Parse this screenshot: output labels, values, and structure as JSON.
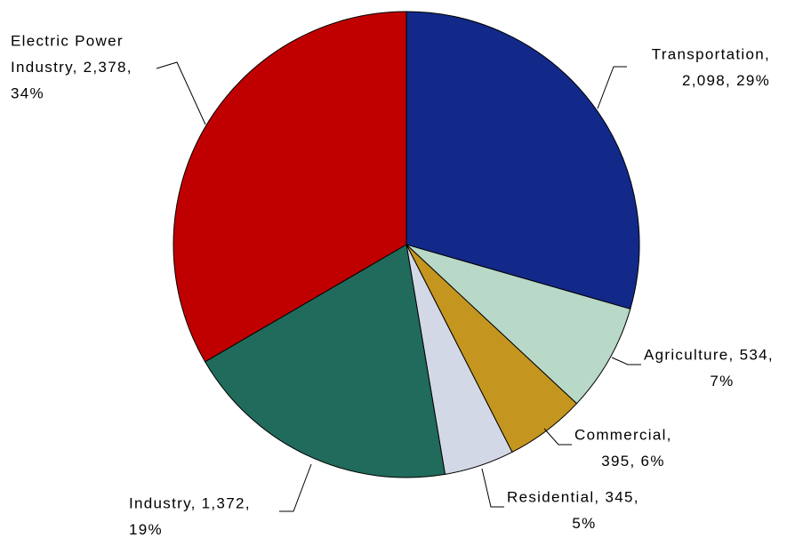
{
  "chart_data": {
    "type": "pie",
    "values": [
      2098,
      534,
      395,
      345,
      1372,
      2378
    ],
    "value_labels": [
      [
        "Transportation,",
        "2,098, 29%"
      ],
      [
        "Agriculture, 534,",
        "7%"
      ],
      [
        "Commercial,",
        "395, 6%"
      ],
      [
        "Residential, 345,",
        "5%"
      ],
      [
        "Industry, 1,372,",
        "19%"
      ],
      [
        "Electric Power",
        "Industry, 2,378,",
        "34%"
      ]
    ],
    "colors": [
      "#12298a",
      "#b8d8c8",
      "#c4961f",
      "#d3d8e6",
      "#206b5c",
      "#c00000"
    ],
    "start_angle": 90,
    "direction": "clockwise"
  }
}
